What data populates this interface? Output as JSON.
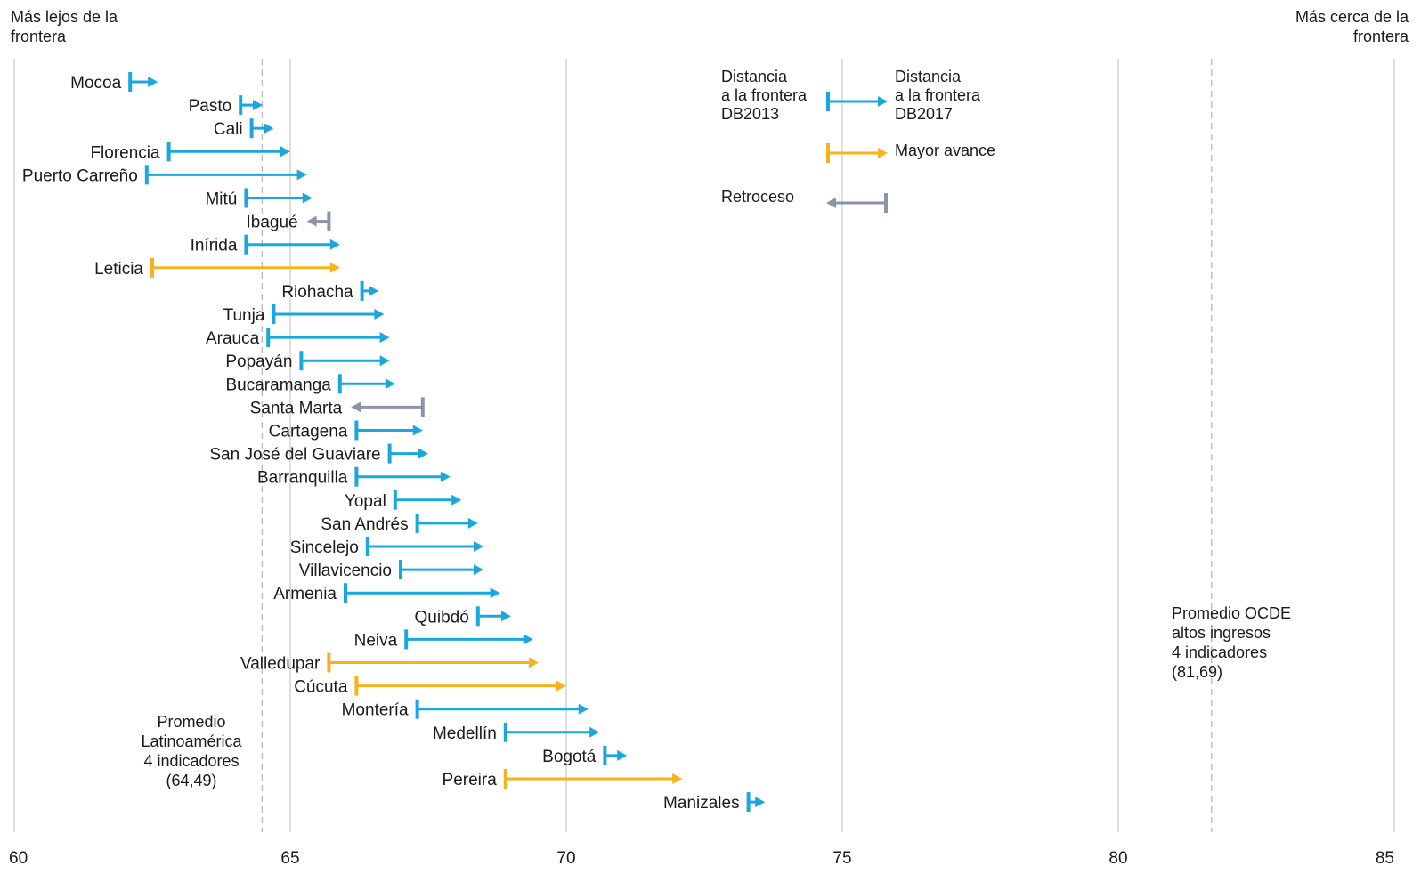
{
  "corners": {
    "left": "Más lejos de la\nfrontera",
    "right": "Más cerca de la\nfrontera"
  },
  "legend": {
    "from_label": "Distancia\na la frontera\nDB2013",
    "to_label": "Distancia\na la frontera\nDB2017",
    "mayor_avance": "Mayor avance",
    "retroceso": "Retroceso"
  },
  "notes": {
    "latam": "Promedio\nLatinoamérica\n4 indicadores\n(64,49)",
    "ocde": "Promedio OCDE\naltos ingresos\n4 indicadores\n(81,69)"
  },
  "colors": {
    "avance": "#1aa7e0",
    "mayor_avance": "#f7b21c",
    "retroceso": "#8b93a6",
    "grid": "#c8c8c8",
    "reference": "#b8b8b8"
  },
  "chart_data": {
    "type": "arrow-range",
    "xlim": [
      60,
      85
    ],
    "x_ticks": [
      60,
      65,
      70,
      75,
      80,
      85
    ],
    "grid": true,
    "reference_lines": [
      {
        "value": 64.49
      },
      {
        "value": 81.69
      }
    ],
    "series": [
      {
        "city": "Mocoa",
        "db2013": 62.1,
        "db2017": 62.6,
        "kind": "avance"
      },
      {
        "city": "Pasto",
        "db2013": 64.1,
        "db2017": 64.5,
        "kind": "avance"
      },
      {
        "city": "Cali",
        "db2013": 64.3,
        "db2017": 64.7,
        "kind": "avance"
      },
      {
        "city": "Florencia",
        "db2013": 62.8,
        "db2017": 65.0,
        "kind": "avance"
      },
      {
        "city": "Puerto Carreño",
        "db2013": 62.4,
        "db2017": 65.3,
        "kind": "avance"
      },
      {
        "city": "Mitú",
        "db2013": 64.2,
        "db2017": 65.4,
        "kind": "avance"
      },
      {
        "city": "Ibagué",
        "db2013": 65.7,
        "db2017": 65.3,
        "kind": "retroceso"
      },
      {
        "city": "Inírida",
        "db2013": 64.2,
        "db2017": 65.9,
        "kind": "avance"
      },
      {
        "city": "Leticia",
        "db2013": 62.5,
        "db2017": 65.9,
        "kind": "mayor_avance"
      },
      {
        "city": "Riohacha",
        "db2013": 66.3,
        "db2017": 66.6,
        "kind": "avance"
      },
      {
        "city": "Tunja",
        "db2013": 64.7,
        "db2017": 66.7,
        "kind": "avance"
      },
      {
        "city": "Arauca",
        "db2013": 64.6,
        "db2017": 66.8,
        "kind": "avance"
      },
      {
        "city": "Popayán",
        "db2013": 65.2,
        "db2017": 66.8,
        "kind": "avance"
      },
      {
        "city": "Bucaramanga",
        "db2013": 65.9,
        "db2017": 66.9,
        "kind": "avance"
      },
      {
        "city": "Santa Marta",
        "db2013": 67.4,
        "db2017": 66.1,
        "kind": "retroceso"
      },
      {
        "city": "Cartagena",
        "db2013": 66.2,
        "db2017": 67.4,
        "kind": "avance"
      },
      {
        "city": "San José del Guaviare",
        "db2013": 66.8,
        "db2017": 67.5,
        "kind": "avance"
      },
      {
        "city": "Barranquilla",
        "db2013": 66.2,
        "db2017": 67.9,
        "kind": "avance"
      },
      {
        "city": "Yopal",
        "db2013": 66.9,
        "db2017": 68.1,
        "kind": "avance"
      },
      {
        "city": "San Andrés",
        "db2013": 67.3,
        "db2017": 68.4,
        "kind": "avance"
      },
      {
        "city": "Sincelejo",
        "db2013": 66.4,
        "db2017": 68.5,
        "kind": "avance"
      },
      {
        "city": "Villavicencio",
        "db2013": 67.0,
        "db2017": 68.5,
        "kind": "avance"
      },
      {
        "city": "Armenia",
        "db2013": 66.0,
        "db2017": 68.8,
        "kind": "avance"
      },
      {
        "city": "Quibdó",
        "db2013": 68.4,
        "db2017": 69.0,
        "kind": "avance"
      },
      {
        "city": "Neiva",
        "db2013": 67.1,
        "db2017": 69.4,
        "kind": "avance"
      },
      {
        "city": "Valledupar",
        "db2013": 65.7,
        "db2017": 69.5,
        "kind": "mayor_avance"
      },
      {
        "city": "Cúcuta",
        "db2013": 66.2,
        "db2017": 70.0,
        "kind": "mayor_avance"
      },
      {
        "city": "Montería",
        "db2013": 67.3,
        "db2017": 70.4,
        "kind": "avance"
      },
      {
        "city": "Medellín",
        "db2013": 68.9,
        "db2017": 70.6,
        "kind": "avance"
      },
      {
        "city": "Bogotá",
        "db2013": 70.7,
        "db2017": 71.1,
        "kind": "avance"
      },
      {
        "city": "Pereira",
        "db2013": 68.9,
        "db2017": 72.1,
        "kind": "mayor_avance"
      },
      {
        "city": "Manizales",
        "db2013": 73.3,
        "db2017": 73.6,
        "kind": "avance"
      }
    ]
  }
}
